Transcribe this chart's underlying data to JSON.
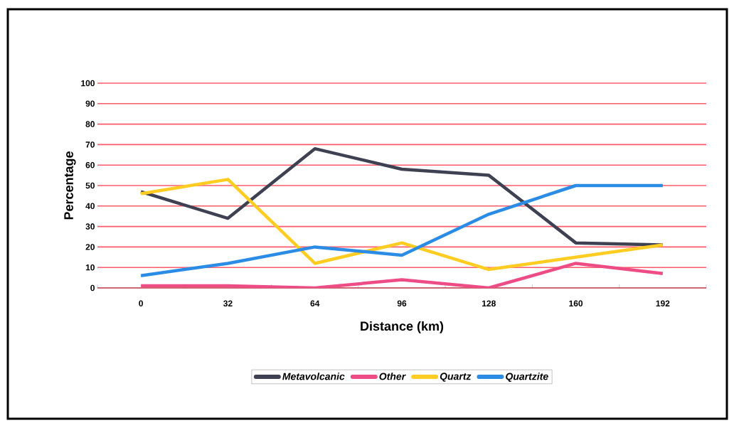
{
  "chart_data": {
    "type": "line",
    "xlabel": "Distance (km)",
    "ylabel": "Percentage",
    "categories": [
      "0",
      "32",
      "64",
      "96",
      "128",
      "160",
      "192"
    ],
    "series": [
      {
        "name": "Metavolcanic",
        "color": "#3d4152",
        "values": [
          47,
          34,
          68,
          58,
          55,
          22,
          21
        ]
      },
      {
        "name": "Other",
        "color": "#ee4c84",
        "values": [
          1,
          1,
          0,
          4,
          0,
          12,
          7
        ]
      },
      {
        "name": "Quartz",
        "color": "#ffcc22",
        "values": [
          46,
          53,
          12,
          22,
          9,
          15,
          21
        ]
      },
      {
        "name": "Quartzite",
        "color": "#2b8ce6",
        "values": [
          6,
          12,
          20,
          16,
          36,
          50,
          50
        ]
      }
    ],
    "ylim": [
      0,
      100
    ],
    "yticks": [
      0,
      10,
      20,
      30,
      40,
      50,
      60,
      70,
      80,
      90,
      100
    ],
    "grid": "y",
    "legend": "bottom",
    "marker": "none",
    "line_style": "solid"
  }
}
